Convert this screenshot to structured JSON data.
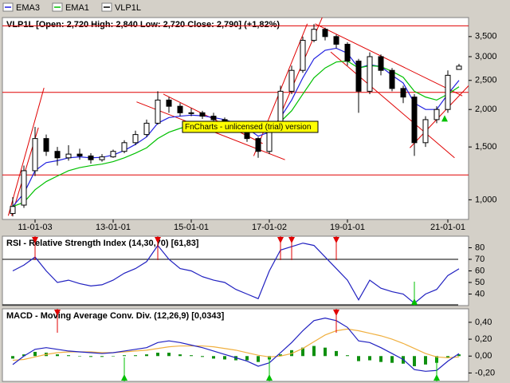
{
  "chart_data": [
    {
      "type": "candlestick",
      "title": "VLP1L [Open: 2,720  High: 2,840  Low: 2,720  Close: 2,790] (+1,82%)",
      "name": "VLP1L",
      "watermark": "FnCharts - unlicensed (trial) version",
      "categories": [
        null,
        null,
        "11-01-03",
        null,
        null,
        null,
        null,
        null,
        null,
        "13-01-01",
        null,
        null,
        null,
        null,
        null,
        null,
        "15-01-01",
        null,
        null,
        null,
        null,
        null,
        null,
        "17-01-02",
        null,
        null,
        null,
        null,
        null,
        null,
        "19-01-01",
        null,
        null,
        null,
        null,
        null,
        null,
        null,
        null,
        "21-01-01",
        null
      ],
      "open": [
        900,
        960,
        1250,
        1600,
        1450,
        1380,
        1420,
        1400,
        1360,
        1390,
        1450,
        1550,
        1650,
        1800,
        2150,
        2050,
        1950,
        1950,
        1900,
        1850,
        1800,
        1700,
        1600,
        1450,
        1750,
        2300,
        2700,
        3400,
        3700,
        3500,
        3300,
        2900,
        2300,
        3000,
        2700,
        2350,
        2200,
        1550,
        1850,
        2000,
        2720
      ],
      "high": [
        1020,
        1300,
        1750,
        1650,
        1500,
        1520,
        1480,
        1430,
        1420,
        1470,
        1580,
        1700,
        1850,
        2300,
        2200,
        2100,
        2020,
        1980,
        1950,
        1880,
        1820,
        1720,
        1620,
        1800,
        2400,
        2800,
        3500,
        3850,
        3750,
        3550,
        3350,
        2950,
        3100,
        3050,
        2750,
        2400,
        2250,
        1900,
        2050,
        2700,
        2840
      ],
      "low": [
        880,
        940,
        1200,
        1400,
        1300,
        1350,
        1360,
        1320,
        1340,
        1380,
        1430,
        1520,
        1620,
        1780,
        1950,
        1900,
        1900,
        1860,
        1820,
        1760,
        1680,
        1560,
        1380,
        1420,
        1720,
        2250,
        2650,
        3350,
        3400,
        3200,
        2800,
        1950,
        2250,
        2600,
        2300,
        2100,
        1400,
        1500,
        1800,
        1950,
        2720
      ],
      "close": [
        950,
        1250,
        1600,
        1450,
        1380,
        1420,
        1400,
        1360,
        1390,
        1450,
        1550,
        1650,
        1800,
        2150,
        2050,
        1950,
        1950,
        1900,
        1850,
        1800,
        1700,
        1600,
        1450,
        1750,
        2300,
        2700,
        3400,
        3700,
        3500,
        3300,
        2900,
        2300,
        3000,
        2700,
        2350,
        2200,
        1550,
        1850,
        2000,
        2600,
        2790
      ],
      "up_color": "#ffffff",
      "down_color": "#000000",
      "series": [
        {
          "name": "EMA3",
          "color": "#2020e0",
          "values": [
            950,
            1050,
            1250,
            1330,
            1350,
            1380,
            1390,
            1380,
            1385,
            1410,
            1460,
            1530,
            1620,
            1800,
            1880,
            1900,
            1915,
            1905,
            1880,
            1850,
            1800,
            1730,
            1630,
            1680,
            1880,
            2150,
            2550,
            2950,
            3150,
            3200,
            3080,
            2750,
            2820,
            2780,
            2600,
            2450,
            2100,
            2000,
            2000,
            2250,
            2500
          ]
        },
        {
          "name": "EMA1",
          "color": "#00c000",
          "values": [
            950,
            980,
            1080,
            1150,
            1200,
            1250,
            1280,
            1300,
            1315,
            1340,
            1380,
            1430,
            1490,
            1600,
            1680,
            1730,
            1770,
            1790,
            1800,
            1800,
            1790,
            1760,
            1720,
            1730,
            1820,
            1980,
            2250,
            2550,
            2750,
            2880,
            2900,
            2750,
            2800,
            2780,
            2680,
            2560,
            2300,
            2200,
            2150,
            2250,
            2380
          ]
        }
      ],
      "ylim": [
        860,
        4050
      ],
      "log_scale": true,
      "yticks": [
        {
          "value": 1000,
          "label": "1,000"
        },
        {
          "value": 1500,
          "label": "1,500"
        },
        {
          "value": 2000,
          "label": "2,000"
        },
        {
          "value": 2500,
          "label": "2,500"
        },
        {
          "value": 3000,
          "label": "3,000"
        },
        {
          "value": 3500,
          "label": "3,500"
        }
      ],
      "hlines": [
        3800,
        2280,
        1210
      ],
      "trendlines": [
        [
          -0.4,
          885,
          2.8,
          2360
        ],
        [
          -0.1,
          885,
          2.3,
          1740
        ],
        [
          11.1,
          2120,
          24.4,
          1360
        ],
        [
          13.5,
          2250,
          22.4,
          1540
        ],
        [
          21.6,
          1400,
          26.4,
          3860
        ],
        [
          23.5,
          1740,
          27.8,
          4100
        ],
        [
          27.1,
          3860,
          40.3,
          2220
        ],
        [
          28.5,
          3110,
          39.6,
          1380
        ],
        [
          35.6,
          1490,
          41.7,
          2590
        ]
      ],
      "trendline_color": "#e00000",
      "buy_signals": [
        39
      ]
    },
    {
      "type": "line",
      "title": "RSI - Relative Strength Index (14,30,70) [61,83]",
      "values": [
        60,
        65,
        72,
        60,
        50,
        52,
        49,
        47,
        48,
        52,
        58,
        62,
        68,
        82,
        70,
        62,
        60,
        55,
        52,
        50,
        44,
        40,
        36,
        60,
        78,
        81,
        84,
        82,
        72,
        62,
        52,
        35,
        52,
        45,
        42,
        40,
        32,
        40,
        44,
        56,
        61.83
      ],
      "color": "#2020c0",
      "ylim": [
        30,
        90
      ],
      "yticks": [
        40,
        50,
        60,
        70,
        80
      ],
      "levels": [
        70,
        30
      ],
      "sell_signals": [
        2,
        13,
        24,
        25,
        29
      ],
      "buy_signals": [
        36
      ]
    },
    {
      "type": "macd",
      "title": "MACD - Moving Average Conv. Div. (12,26,9) [0,0343]",
      "macd": [
        -0.1,
        0.0,
        0.08,
        0.1,
        0.08,
        0.06,
        0.05,
        0.04,
        0.03,
        0.04,
        0.06,
        0.08,
        0.1,
        0.16,
        0.18,
        0.16,
        0.13,
        0.1,
        0.06,
        0.02,
        -0.02,
        -0.06,
        -0.12,
        -0.08,
        0.04,
        0.16,
        0.3,
        0.42,
        0.45,
        0.42,
        0.34,
        0.18,
        0.16,
        0.1,
        0.03,
        -0.04,
        -0.16,
        -0.18,
        -0.17,
        -0.06,
        0.03
      ],
      "signal": [
        -0.05,
        -0.04,
        -0.01,
        0.02,
        0.04,
        0.05,
        0.05,
        0.05,
        0.04,
        0.04,
        0.05,
        0.06,
        0.07,
        0.09,
        0.11,
        0.12,
        0.12,
        0.12,
        0.11,
        0.09,
        0.07,
        0.04,
        0.01,
        -0.01,
        0.0,
        0.03,
        0.09,
        0.17,
        0.25,
        0.3,
        0.32,
        0.3,
        0.27,
        0.24,
        0.2,
        0.15,
        0.09,
        0.03,
        -0.01,
        -0.02,
        -0.01
      ],
      "histogram": [
        -0.03,
        0.02,
        0.05,
        0.04,
        0.02,
        0.01,
        0,
        -0.01,
        -0.01,
        0,
        0.01,
        0.01,
        0.02,
        0.04,
        0.04,
        0.02,
        0.01,
        -0.01,
        -0.03,
        -0.04,
        -0.05,
        -0.05,
        -0.07,
        -0.04,
        0.02,
        0.07,
        0.1,
        0.12,
        0.1,
        0.06,
        0.01,
        -0.06,
        -0.05,
        -0.07,
        -0.08,
        -0.09,
        -0.12,
        -0.1,
        -0.08,
        -0.02,
        0.02
      ],
      "macd_color": "#2020c0",
      "signal_color": "#f0b040",
      "histogram_color": "#109010",
      "ylim": [
        -0.3,
        0.56
      ],
      "yticks": [
        {
          "value": -0.2,
          "label": "-0,20"
        },
        {
          "value": 0,
          "label": "0,00"
        },
        {
          "value": 0.2,
          "label": "0,20"
        },
        {
          "value": 0.4,
          "label": "0,40"
        }
      ],
      "sell_signals": [
        4,
        29
      ],
      "buy_signals": [
        10,
        23,
        38
      ]
    }
  ]
}
